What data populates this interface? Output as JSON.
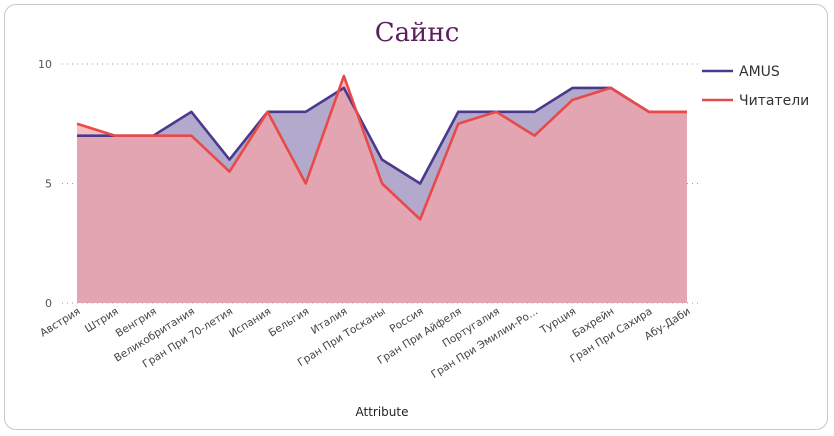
{
  "chart_data": {
    "type": "area",
    "title": "Сайнс",
    "xlabel": "Attribute",
    "ylabel": "",
    "ylim": [
      0,
      10
    ],
    "yticks": [
      0,
      5,
      10
    ],
    "grid": true,
    "legend_position": "top-right",
    "categories": [
      "Австрия",
      "Штрия",
      "Венгрия",
      "Великобритания",
      "Гран При 70-летия",
      "Испания",
      "Бельгия",
      "Италия",
      "Гран При Тосканы",
      "Россия",
      "Гран При Айфеля",
      "Португалия",
      "Гран При Эмилии-Ро...",
      "Турция",
      "Бахрейн",
      "Гран При Сахира",
      "Абу-Даби"
    ],
    "series": [
      {
        "name": "AMUS",
        "color": "#4b3a8c",
        "fill": "#b3a9cc",
        "values": [
          7,
          7,
          7,
          8,
          6,
          8,
          8,
          9,
          6,
          5,
          8,
          8,
          8,
          9,
          9,
          8,
          8
        ]
      },
      {
        "name": "Читатели",
        "color": "#e84a4a",
        "fill": "#f4a3a6",
        "values": [
          7.5,
          7,
          7,
          7,
          5.5,
          8,
          5,
          9.5,
          5,
          3.5,
          7.5,
          8,
          7,
          8.5,
          9,
          8,
          8
        ]
      }
    ]
  }
}
